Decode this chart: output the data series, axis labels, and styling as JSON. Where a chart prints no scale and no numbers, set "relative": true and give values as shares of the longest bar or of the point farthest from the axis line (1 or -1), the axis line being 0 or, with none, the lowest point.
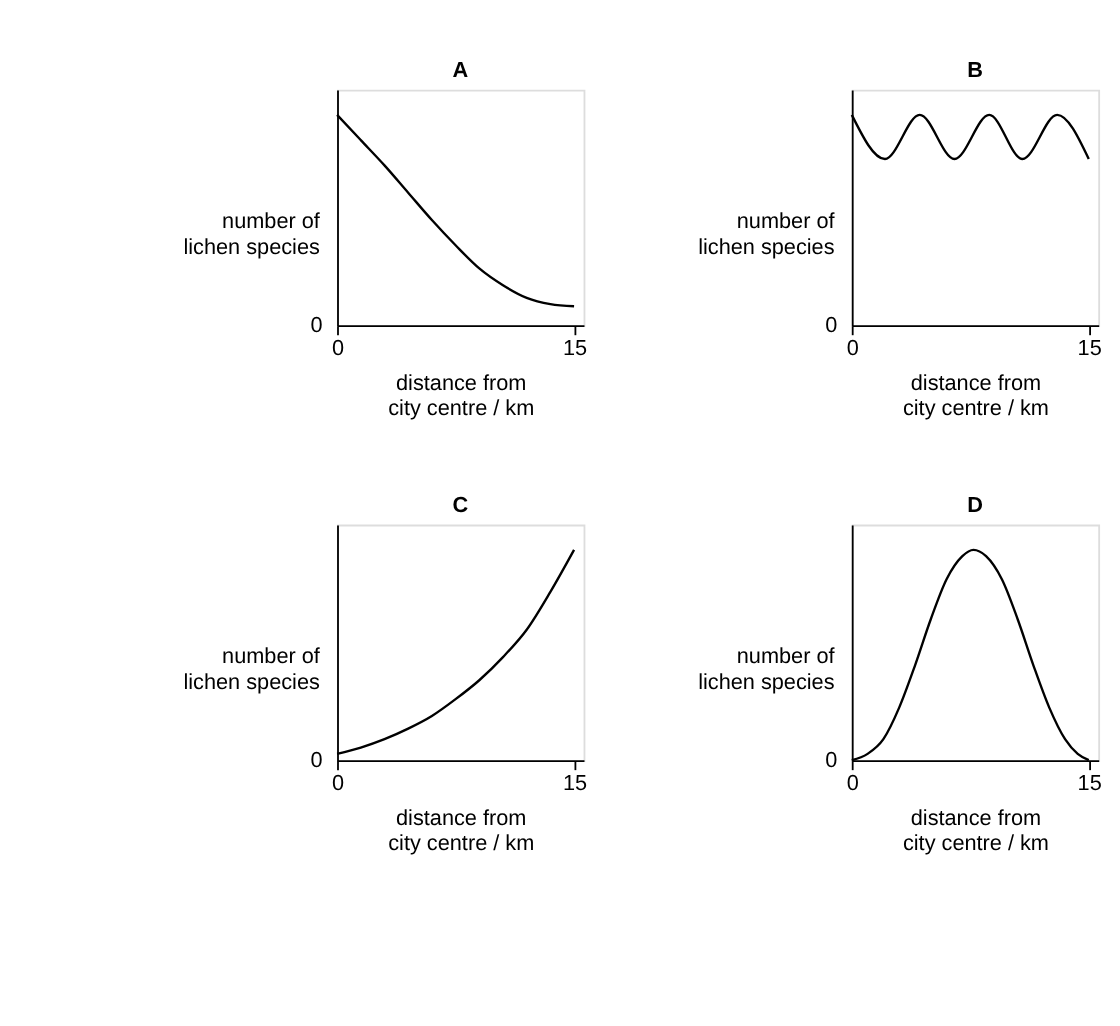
{
  "chart_data": [
    {
      "type": "line",
      "title": "A",
      "xlabel": "distance from\ncity centre / km",
      "ylabel": "number of\nlichen species",
      "relative": true,
      "xlim": [
        0,
        15.6
      ],
      "xticks": [
        0,
        15
      ],
      "annotations": [
        "0"
      ],
      "grid": false,
      "series": [
        {
          "color": "#000000",
          "x": [
            0,
            1.5,
            3,
            4.5,
            6,
            7.5,
            9,
            10.5,
            12,
            13.5,
            15
          ],
          "values": [
            1,
            0.88,
            0.76,
            0.63,
            0.5,
            0.38,
            0.27,
            0.19,
            0.13,
            0.1,
            0.09
          ]
        }
      ]
    },
    {
      "type": "line",
      "title": "B",
      "xlabel": "distance from\ncity centre / km",
      "ylabel": "number of\nlichen species",
      "relative": true,
      "xlim": [
        0,
        15.6
      ],
      "xticks": [
        0,
        15
      ],
      "annotations": [
        "0"
      ],
      "grid": false,
      "series": [
        {
          "color": "#000000",
          "x": [
            0,
            2.1,
            4.3,
            6.5,
            8.7,
            10.8,
            13,
            15
          ],
          "values": [
            1,
            0.79,
            1,
            0.79,
            1,
            0.79,
            1,
            0.79
          ]
        }
      ]
    },
    {
      "type": "line",
      "title": "C",
      "xlabel": "distance from\ncity centre / km",
      "ylabel": "number of\nlichen species",
      "relative": true,
      "xlim": [
        0,
        15.6
      ],
      "xticks": [
        0,
        15
      ],
      "annotations": [
        "0"
      ],
      "grid": false,
      "series": [
        {
          "color": "#000000",
          "x": [
            0,
            1.5,
            3,
            4.5,
            6,
            7.5,
            9,
            10.5,
            12,
            13.5,
            15
          ],
          "values": [
            0.03,
            0.06,
            0.1,
            0.15,
            0.21,
            0.29,
            0.38,
            0.49,
            0.62,
            0.8,
            1
          ]
        }
      ]
    },
    {
      "type": "line",
      "title": "D",
      "xlabel": "distance from\ncity centre / km",
      "ylabel": "number of\nlichen species",
      "relative": true,
      "xlim": [
        0,
        15.6
      ],
      "xticks": [
        0,
        15
      ],
      "annotations": [
        "0"
      ],
      "grid": false,
      "series": [
        {
          "color": "#000000",
          "x": [
            0,
            1,
            2,
            3,
            4,
            5,
            6,
            7,
            7.7,
            8.5,
            9.5,
            10.5,
            11.5,
            12.5,
            13.5,
            14.3,
            15
          ],
          "values": [
            0,
            0.03,
            0.1,
            0.25,
            0.45,
            0.67,
            0.86,
            0.97,
            1,
            0.97,
            0.86,
            0.67,
            0.45,
            0.25,
            0.1,
            0.03,
            0
          ]
        }
      ]
    }
  ]
}
